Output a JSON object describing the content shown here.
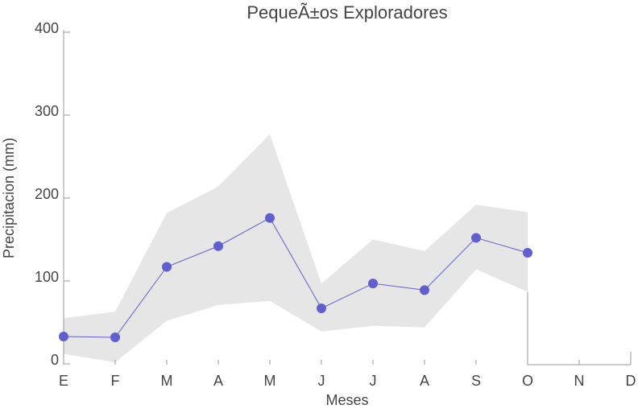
{
  "chart_data": {
    "type": "line",
    "title": "PequeÃ±os Exploradores",
    "x_label": "Meses",
    "y_label": "Precipitacion (mm)",
    "categories": [
      "E",
      "F",
      "M",
      "A",
      "M",
      "J",
      "J",
      "A",
      "S",
      "O",
      "N",
      "D"
    ],
    "values": [
      33,
      32,
      117,
      142,
      176,
      67,
      97,
      89,
      152,
      134,
      null,
      null
    ],
    "color": "#5f5fcf",
    "band": {
      "lower": [
        12,
        2,
        52,
        71,
        76,
        39,
        46,
        44,
        114,
        87,
        null,
        null
      ],
      "upper": [
        55,
        63,
        182,
        214,
        277,
        97,
        150,
        136,
        192,
        183,
        null,
        null
      ],
      "color": "#e6e6e6"
    },
    "ylim": [
      0,
      400
    ],
    "yticks": [
      0,
      100,
      200,
      300,
      400
    ]
  }
}
